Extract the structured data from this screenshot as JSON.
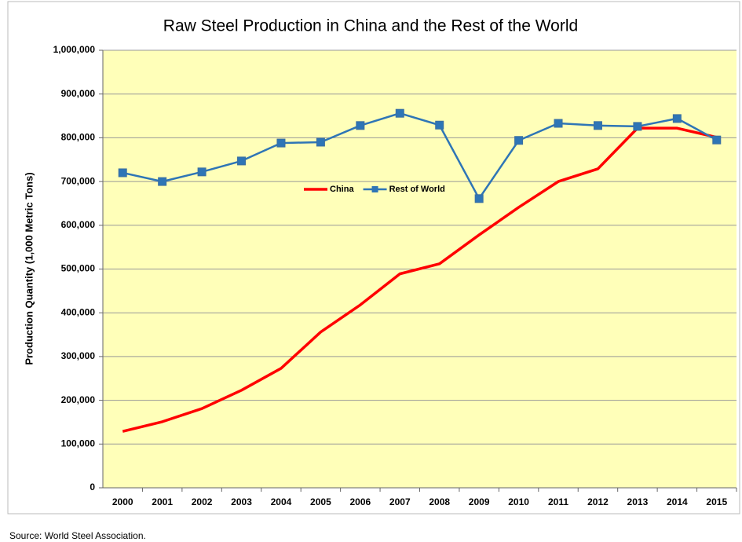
{
  "chart_data": {
    "type": "line",
    "title": "Raw Steel Production in China and the Rest of the World",
    "y_label": "Production Quantity (1,000 Metric Tons)",
    "source": "Source:  World Steel Association.",
    "categories": [
      "2000",
      "2001",
      "2002",
      "2003",
      "2004",
      "2005",
      "2006",
      "2007",
      "2008",
      "2009",
      "2010",
      "2011",
      "2012",
      "2013",
      "2014",
      "2015"
    ],
    "series": [
      {
        "name": "China",
        "color": "#ff0000",
        "marker": false,
        "values": [
          129000,
          151000,
          181000,
          223000,
          273000,
          356000,
          418000,
          489000,
          512000,
          578000,
          641000,
          700000,
          729000,
          822000,
          822000,
          801000
        ]
      },
      {
        "name": "Rest of World",
        "color": "#2e75b6",
        "marker": true,
        "values": [
          720000,
          700000,
          722000,
          747000,
          788000,
          790000,
          828000,
          856000,
          829000,
          661000,
          794000,
          833000,
          828000,
          826000,
          844000,
          795000
        ]
      }
    ],
    "ylim": [
      0,
      1000000
    ],
    "yticks": [
      0,
      {
        "value": 100000,
        "label": "100,000"
      },
      {
        "value": 200000,
        "label": "200,000"
      },
      {
        "value": 300000,
        "label": "300,000"
      },
      {
        "value": 400000,
        "label": "400,000"
      },
      {
        "value": 500000,
        "label": "500,000"
      },
      {
        "value": 600000,
        "label": "600,000"
      },
      {
        "value": 700000,
        "label": "700,000"
      },
      {
        "value": 800000,
        "label": "800,000"
      },
      {
        "value": 900000,
        "label": "900,000"
      },
      {
        "value": 1000000,
        "label": "1,000,000"
      }
    ],
    "grid": true,
    "plot_background": "#ffffb9",
    "legend_position": "center"
  }
}
